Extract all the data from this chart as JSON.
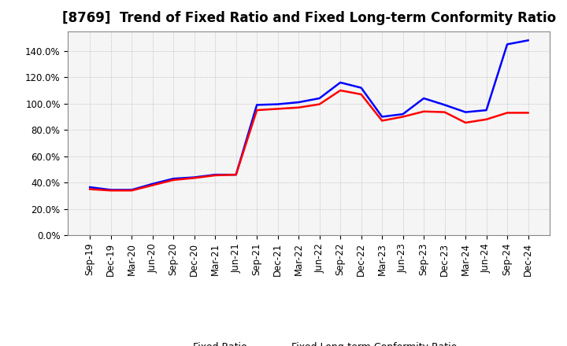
{
  "title": "[8769]  Trend of Fixed Ratio and Fixed Long-term Conformity Ratio",
  "x_labels": [
    "Sep-19",
    "Dec-19",
    "Mar-20",
    "Jun-20",
    "Sep-20",
    "Dec-20",
    "Mar-21",
    "Jun-21",
    "Sep-21",
    "Dec-21",
    "Mar-22",
    "Jun-22",
    "Sep-22",
    "Dec-22",
    "Mar-23",
    "Jun-23",
    "Sep-23",
    "Dec-23",
    "Mar-24",
    "Jun-24",
    "Sep-24",
    "Dec-24"
  ],
  "fixed_ratio": [
    36.5,
    34.5,
    34.5,
    39.0,
    43.0,
    44.0,
    46.0,
    46.0,
    99.0,
    99.5,
    101.0,
    104.0,
    116.0,
    112.0,
    90.0,
    92.0,
    104.0,
    99.0,
    93.5,
    95.0,
    145.0,
    148.0
  ],
  "fixed_ltcr": [
    35.0,
    34.0,
    34.0,
    38.0,
    42.0,
    43.5,
    45.5,
    46.0,
    95.0,
    96.0,
    97.0,
    99.5,
    110.0,
    107.0,
    87.0,
    90.0,
    94.0,
    93.5,
    85.5,
    88.0,
    93.0,
    93.0
  ],
  "fixed_ratio_color": "#0000FF",
  "fixed_ltcr_color": "#FF0000",
  "ylim": [
    0,
    155
  ],
  "yticks": [
    0,
    20,
    40,
    60,
    80,
    100,
    120,
    140
  ],
  "background_color": "#FFFFFF",
  "plot_bg_color": "#F5F5F5",
  "grid_color": "#AAAAAA",
  "title_fontsize": 12,
  "tick_fontsize": 8.5,
  "legend_labels": [
    "Fixed Ratio",
    "Fixed Long-term Conformity Ratio"
  ]
}
